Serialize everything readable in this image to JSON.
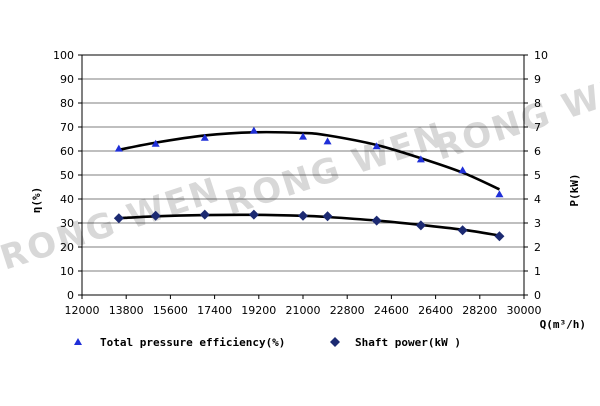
{
  "chart_data": {
    "type": "line",
    "title": "",
    "xlabel": "Q(m³/h)",
    "ylabel_left": "η(%)",
    "ylabel_right": "P(kW)",
    "xlim": [
      12000,
      30000
    ],
    "ylim_left": [
      0,
      100
    ],
    "ylim_right": [
      0,
      10
    ],
    "x_ticks": [
      "12000",
      "13800",
      "15600",
      "17400",
      "19200",
      "21000",
      "22800",
      "24600",
      "26400",
      "28200",
      "30000"
    ],
    "y_left_ticks": [
      "0",
      "10",
      "20",
      "30",
      "40",
      "50",
      "60",
      "70",
      "80",
      "90",
      "100"
    ],
    "y_right_ticks": [
      "0",
      "1",
      "2",
      "3",
      "4",
      "5",
      "6",
      "7",
      "8",
      "9",
      "10"
    ],
    "grid": "horizontal",
    "legend_position": "bottom",
    "watermark": "RONG WEN",
    "series": [
      {
        "name": "Total pressure efficiency(%)",
        "axis": "left",
        "marker": "triangle",
        "color": "#1f2fd8",
        "x": [
          13500,
          15000,
          17000,
          19000,
          21000,
          22000,
          24000,
          25800,
          27500,
          29000
        ],
        "values": [
          61,
          63,
          65.5,
          68.5,
          66,
          64,
          62,
          56.5,
          52,
          42
        ],
        "fit_x": [
          13500,
          15000,
          17000,
          19000,
          21000,
          22000,
          24000,
          25800,
          27500,
          29000
        ],
        "fit_values": [
          60.5,
          63.5,
          66.5,
          67.8,
          67.5,
          66.5,
          62.5,
          57,
          51,
          44
        ]
      },
      {
        "name": "Shaft power(kW )",
        "axis": "right",
        "marker": "diamond",
        "color": "#1c2a72",
        "x": [
          13500,
          15000,
          17000,
          19000,
          21000,
          22000,
          24000,
          25800,
          27500,
          29000
        ],
        "values": [
          3.2,
          3.3,
          3.35,
          3.35,
          3.3,
          3.28,
          3.1,
          2.9,
          2.7,
          2.45
        ],
        "fit_x": [
          13500,
          15000,
          17000,
          19000,
          21000,
          22000,
          24000,
          25800,
          27500,
          29000
        ],
        "fit_values": [
          3.2,
          3.28,
          3.33,
          3.34,
          3.3,
          3.25,
          3.1,
          2.92,
          2.72,
          2.48
        ]
      }
    ]
  }
}
